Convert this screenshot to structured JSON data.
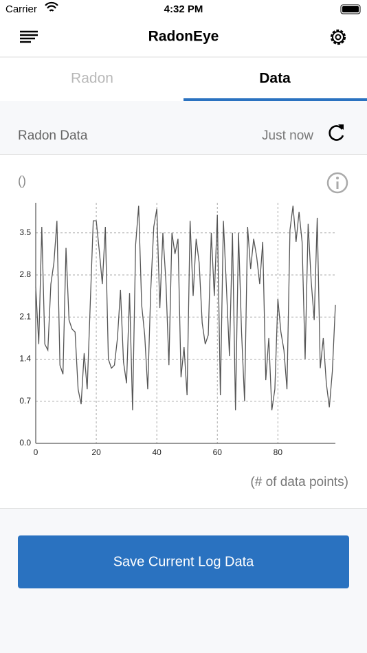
{
  "status_bar": {
    "carrier": "Carrier",
    "time": "4:32 PM"
  },
  "nav": {
    "title": "RadonEye"
  },
  "tabs": [
    "Radon",
    "Data"
  ],
  "section": {
    "title": "Radon Data",
    "updated": "Just now"
  },
  "chart_data": {
    "type": "line",
    "y_label": "()",
    "x_label": "(# of data points)",
    "color": "#555555",
    "grid": true,
    "x": [
      0,
      1,
      2,
      3,
      4,
      5,
      6,
      7,
      8,
      9,
      10,
      11,
      12,
      13,
      14,
      15,
      16,
      17,
      18,
      19,
      20,
      21,
      22,
      23,
      24,
      25,
      26,
      27,
      28,
      29,
      30,
      31,
      32,
      33,
      34,
      35,
      36,
      37,
      38,
      39,
      40,
      41,
      42,
      43,
      44,
      45,
      46,
      47,
      48,
      49,
      50,
      51,
      52,
      53,
      54,
      55,
      56,
      57,
      58,
      59,
      60,
      61,
      62,
      63,
      64,
      65,
      66,
      67,
      68,
      69,
      70,
      71,
      72,
      73,
      74,
      75,
      76,
      77,
      78,
      79,
      80,
      81,
      82,
      83,
      84,
      85,
      86,
      87,
      88,
      89,
      90,
      91,
      92,
      93,
      94,
      95,
      96,
      97,
      98,
      99
    ],
    "values": [
      2.6,
      1.65,
      3.6,
      1.65,
      1.55,
      2.65,
      3.0,
      3.7,
      1.3,
      1.15,
      3.25,
      2.05,
      1.9,
      1.85,
      0.9,
      0.65,
      1.5,
      0.9,
      2.3,
      3.7,
      3.7,
      3.2,
      2.65,
      3.6,
      1.4,
      1.25,
      1.3,
      1.75,
      2.55,
      1.35,
      1.0,
      2.5,
      0.55,
      3.3,
      3.95,
      2.3,
      1.8,
      0.9,
      2.55,
      3.6,
      3.9,
      2.25,
      3.5,
      2.7,
      1.3,
      3.5,
      3.15,
      3.4,
      1.1,
      1.6,
      0.8,
      3.7,
      2.45,
      3.4,
      3.0,
      2.0,
      1.65,
      1.8,
      3.5,
      2.45,
      3.8,
      0.8,
      3.7,
      2.6,
      1.45,
      3.5,
      0.55,
      3.5,
      1.85,
      0.7,
      3.6,
      2.9,
      3.4,
      3.1,
      2.65,
      3.35,
      1.05,
      1.75,
      0.55,
      0.9,
      2.4,
      1.85,
      1.55,
      0.9,
      3.55,
      3.95,
      3.35,
      3.85,
      3.35,
      1.4,
      3.65,
      2.7,
      2.05,
      3.75,
      1.25,
      1.75,
      1.0,
      0.6,
      1.2,
      2.3
    ],
    "xlim": [
      0,
      99
    ],
    "xticks": [
      0,
      20,
      40,
      60,
      80
    ],
    "ylim": [
      0,
      4.0
    ],
    "yticks": [
      {
        "value": 0,
        "label": "0.0"
      },
      0.7,
      1.4,
      2.1,
      2.8,
      3.5
    ]
  },
  "button": {
    "label": "Save Current Log Data"
  }
}
